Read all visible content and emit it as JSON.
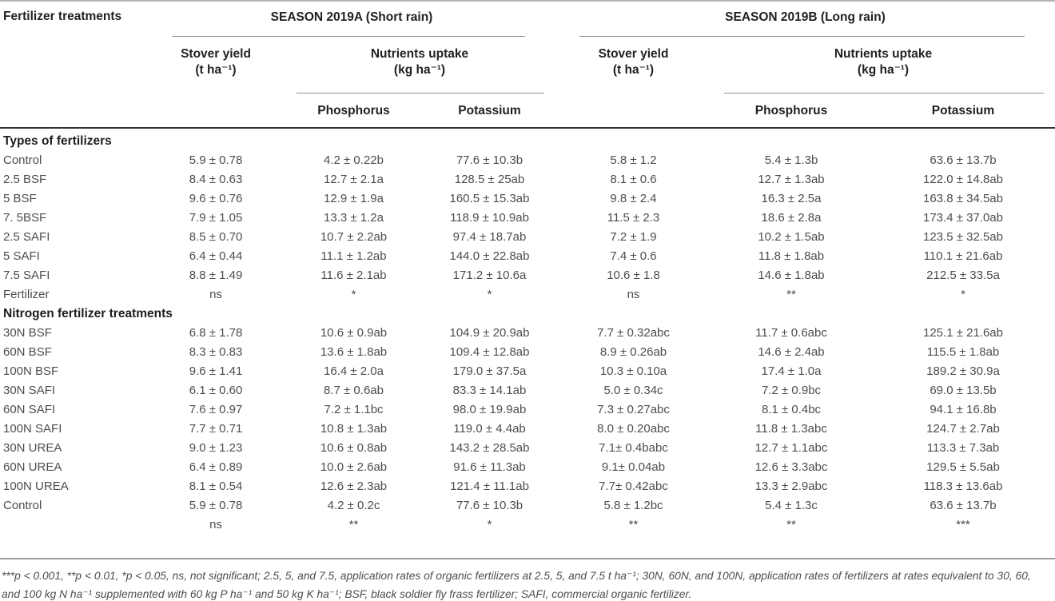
{
  "table": {
    "corner_header": "Fertilizer treatments",
    "seasons": [
      {
        "label": "SEASON 2019A (Short rain)",
        "stover_label": "Stover yield",
        "stover_unit": "(t ha⁻¹)",
        "nutrients_label": "Nutrients uptake",
        "nutrients_unit": "(kg ha⁻¹)",
        "nutrient_columns": [
          "Phosphorus",
          "Potassium"
        ]
      },
      {
        "label": "SEASON 2019B (Long rain)",
        "stover_label": "Stover yield",
        "stover_unit": "(t ha⁻¹)",
        "nutrients_label": "Nutrients uptake",
        "nutrients_unit": "(kg ha⁻¹)",
        "nutrient_columns": [
          "Phosphorus",
          "Potassium"
        ]
      }
    ],
    "sections": [
      {
        "title": "Types of fertilizers",
        "rows": [
          {
            "label": "Control",
            "values": [
              "5.9 ± 0.78",
              "4.2 ± 0.22b",
              "77.6 ± 10.3b",
              "5.8 ± 1.2",
              "5.4 ± 1.3b",
              "63.6 ± 13.7b"
            ]
          },
          {
            "label": "2.5 BSF",
            "values": [
              "8.4 ± 0.63",
              "12.7 ± 2.1a",
              "128.5 ± 25ab",
              "8.1 ± 0.6",
              "12.7 ± 1.3ab",
              "122.0 ± 14.8ab"
            ]
          },
          {
            "label": "5 BSF",
            "values": [
              "9.6 ± 0.76",
              "12.9 ± 1.9a",
              "160.5 ± 15.3ab",
              "9.8 ± 2.4",
              "16.3 ± 2.5a",
              "163.8 ± 34.5ab"
            ]
          },
          {
            "label": "7. 5BSF",
            "values": [
              "7.9 ± 1.05",
              "13.3 ± 1.2a",
              "118.9 ± 10.9ab",
              "11.5 ± 2.3",
              "18.6 ± 2.8a",
              "173.4 ± 37.0ab"
            ]
          },
          {
            "label": "2.5 SAFI",
            "values": [
              "8.5 ± 0.70",
              "10.7 ± 2.2ab",
              "97.4 ± 18.7ab",
              "7.2 ± 1.9",
              "10.2 ± 1.5ab",
              "123.5 ± 32.5ab"
            ]
          },
          {
            "label": "5 SAFI",
            "values": [
              "6.4 ± 0.44",
              "11.1 ± 1.2ab",
              "144.0 ± 22.8ab",
              "7.4 ± 0.6",
              "11.8 ± 1.8ab",
              "110.1 ± 21.6ab"
            ]
          },
          {
            "label": "7.5 SAFI",
            "values": [
              "8.8 ± 1.49",
              "11.6 ± 2.1ab",
              "171.2 ± 10.6a",
              "10.6 ± 1.8",
              "14.6 ± 1.8ab",
              "212.5 ± 33.5a"
            ]
          },
          {
            "label": "Fertilizer",
            "values": [
              "ns",
              "*",
              "*",
              "ns",
              "**",
              "*"
            ]
          }
        ]
      },
      {
        "title": "Nitrogen fertilizer treatments",
        "rows": [
          {
            "label": "30N BSF",
            "values": [
              "6.8 ± 1.78",
              "10.6 ± 0.9ab",
              "104.9 ± 20.9ab",
              "7.7 ± 0.32abc",
              "11.7 ± 0.6abc",
              "125.1 ± 21.6ab"
            ]
          },
          {
            "label": "60N BSF",
            "values": [
              "8.3 ± 0.83",
              "13.6 ± 1.8ab",
              "109.4 ± 12.8ab",
              "8.9 ± 0.26ab",
              "14.6 ± 2.4ab",
              "115.5 ± 1.8ab"
            ]
          },
          {
            "label": "100N BSF",
            "values": [
              "9.6 ± 1.41",
              "16.4 ± 2.0a",
              "179.0 ± 37.5a",
              "10.3 ± 0.10a",
              "17.4 ± 1.0a",
              "189.2 ± 30.9a"
            ]
          },
          {
            "label": "30N SAFI",
            "values": [
              "6.1 ± 0.60",
              "8.7 ± 0.6ab",
              "83.3 ± 14.1ab",
              "5.0 ± 0.34c",
              "7.2 ± 0.9bc",
              "69.0 ± 13.5b"
            ]
          },
          {
            "label": "60N SAFI",
            "values": [
              "7.6 ± 0.97",
              "7.2 ± 1.1bc",
              "98.0 ± 19.9ab",
              "7.3 ± 0.27abc",
              "8.1 ± 0.4bc",
              "94.1 ± 16.8b"
            ]
          },
          {
            "label": "100N SAFI",
            "values": [
              "7.7 ± 0.71",
              "10.8 ± 1.3ab",
              "119.0 ± 4.4ab",
              "8.0 ± 0.20abc",
              "11.8 ± 1.3abc",
              "124.7 ± 2.7ab"
            ]
          },
          {
            "label": "30N UREA",
            "values": [
              "9.0 ± 1.23",
              "10.6 ± 0.8ab",
              "143.2 ± 28.5ab",
              "7.1± 0.4babc",
              "12.7 ± 1.1abc",
              "113.3 ± 7.3ab"
            ]
          },
          {
            "label": "60N UREA",
            "values": [
              "6.4 ± 0.89",
              "10.0 ± 2.6ab",
              "91.6 ± 11.3ab",
              "9.1± 0.04ab",
              "12.6 ± 3.3abc",
              "129.5 ± 5.5ab"
            ]
          },
          {
            "label": "100N UREA",
            "values": [
              "8.1 ± 0.54",
              "12.6 ± 2.3ab",
              "121.4 ± 11.1ab",
              "7.7± 0.42abc",
              "13.3 ± 2.9abc",
              "118.3 ± 13.6ab"
            ]
          },
          {
            "label": "Control",
            "values": [
              "5.9 ± 0.78",
              "4.2 ± 0.2c",
              "77.6 ± 10.3b",
              "5.8 ± 1.2bc",
              "5.4 ± 1.3c",
              "63.6 ± 13.7b"
            ]
          },
          {
            "label": "",
            "values": [
              "ns",
              "**",
              "*",
              "**",
              "**",
              "***"
            ]
          }
        ]
      }
    ]
  },
  "footnote": {
    "text": "***p < 0.001, **p < 0.01, *p < 0.05, ns, not significant; 2.5, 5, and 7.5, application rates of organic fertilizers at 2.5, 5, and 7.5 t ha⁻¹; 30N, 60N, and 100N, application rates of fertilizers at rates equivalent to 30, 60, and 100 kg N ha⁻¹ supplemented with 60 kg P ha⁻¹ and 50 kg K ha⁻¹; BSF, black soldier fly frass fertilizer; SAFI, commercial organic fertilizer."
  }
}
